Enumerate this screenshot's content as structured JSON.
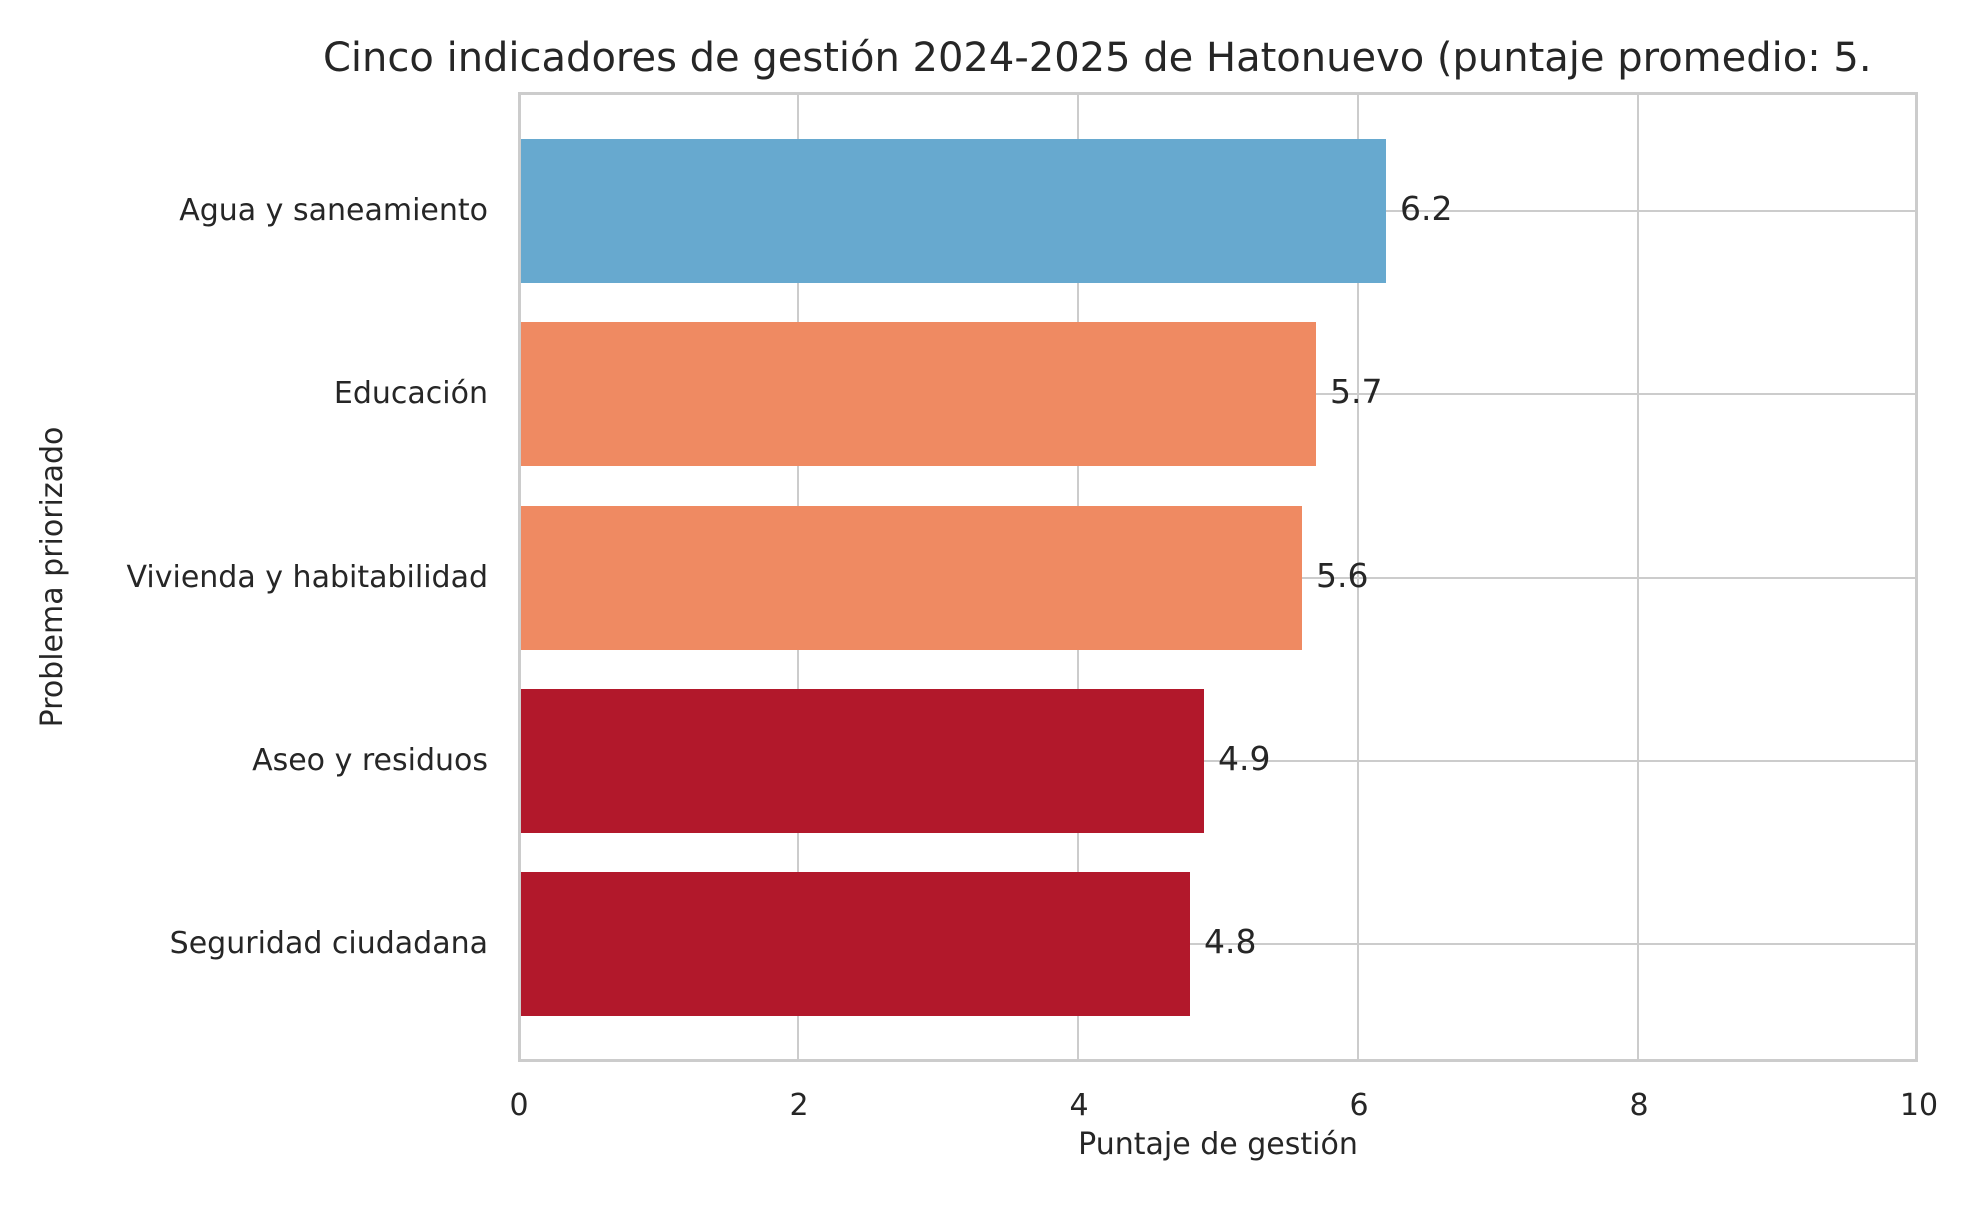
{
  "chart_data": {
    "type": "bar",
    "orientation": "horizontal",
    "title": "Cinco indicadores de gestión 2024-2025 de Hatonuevo (puntaje promedio: 5.",
    "xlabel": "Puntaje de gestión",
    "ylabel": "Problema priorizado",
    "xlim": [
      0,
      10
    ],
    "x_ticks": [
      "0",
      "2",
      "4",
      "6",
      "8",
      "10"
    ],
    "grid": true,
    "categories": [
      "Agua y saneamiento",
      "Educación",
      "Vivienda y habitabilidad",
      "Aseo y residuos",
      "Seguridad ciudadana"
    ],
    "values": [
      6.2,
      5.7,
      5.6,
      4.9,
      4.8
    ],
    "value_labels": [
      "6.2",
      "5.7",
      "5.6",
      "4.9",
      "4.8"
    ],
    "colors": [
      "#67a9cf",
      "#ef8a62",
      "#ef8a62",
      "#b2182b",
      "#b2182b"
    ]
  },
  "bars": [
    {
      "label": "Agua y saneamiento",
      "value": 6.2,
      "value_label": "6.2",
      "color": "#67a9cf"
    },
    {
      "label": "Educación",
      "value": 5.7,
      "value_label": "5.7",
      "color": "#ef8a62"
    },
    {
      "label": "Vivienda y habitabilidad",
      "value": 5.6,
      "value_label": "5.6",
      "color": "#ef8a62"
    },
    {
      "label": "Aseo y residuos",
      "value": 4.9,
      "value_label": "4.9",
      "color": "#b2182b"
    },
    {
      "label": "Seguridad ciudadana",
      "value": 4.8,
      "value_label": "4.8",
      "color": "#b2182b"
    }
  ],
  "axes": {
    "title": "Cinco indicadores de gestión 2024-2025 de Hatonuevo (puntaje promedio: 5.",
    "xlabel": "Puntaje de gestión",
    "ylabel": "Problema priorizado",
    "ticks": [
      "0",
      "2",
      "4",
      "6",
      "8",
      "10"
    ]
  },
  "style": {
    "grid_color": "#cccccc",
    "text_color": "#262626"
  }
}
